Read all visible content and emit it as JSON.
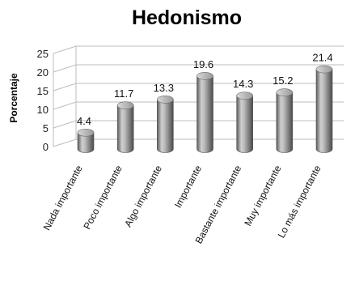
{
  "chart_data": {
    "type": "bar",
    "title": "Hedonismo",
    "xlabel": "",
    "ylabel": "Porcentaje",
    "ylim": [
      0,
      25
    ],
    "yticks": [
      0,
      5,
      10,
      15,
      20,
      25
    ],
    "grid": true,
    "legend": "none",
    "style": "3d-cylinder",
    "bar_color": "#8c8c8c",
    "categories": [
      "Nada importante",
      "Poco importante",
      "Algo importante",
      "Importante",
      "Bastante importante",
      "Muy importante",
      "Lo más importante"
    ],
    "values": [
      4.4,
      11.7,
      13.3,
      19.6,
      14.3,
      15.2,
      21.4
    ],
    "value_labels": [
      "4.4",
      "11.7",
      "13.3",
      "19.6",
      "14.3",
      "15.2",
      "21.4"
    ]
  }
}
